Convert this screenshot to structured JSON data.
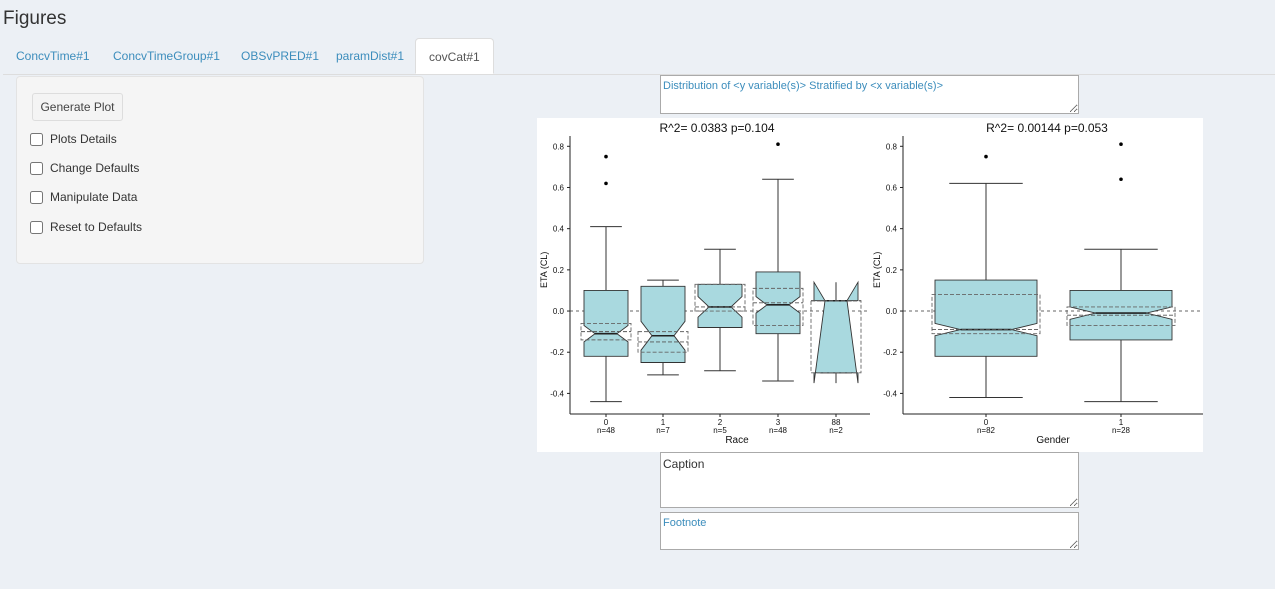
{
  "page": {
    "title": "Figures"
  },
  "tabs": [
    {
      "label": "ConcvTime#1",
      "active": false
    },
    {
      "label": "ConcvTimeGroup#1",
      "active": false
    },
    {
      "label": "OBSvPRED#1",
      "active": false
    },
    {
      "label": "paramDist#1",
      "active": false
    },
    {
      "label": "covCat#1",
      "active": true
    }
  ],
  "panel": {
    "generate_label": "Generate Plot",
    "checkboxes": [
      {
        "label": "Plots Details",
        "checked": false
      },
      {
        "label": "Change Defaults",
        "checked": false
      },
      {
        "label": "Manipulate Data",
        "checked": false
      },
      {
        "label": "Reset to Defaults",
        "checked": false
      }
    ]
  },
  "title_box": {
    "value": "Distribution of <y variable(s)> Stratified by <x variable(s)>"
  },
  "caption_box": {
    "value": "Caption"
  },
  "footnote_box": {
    "value": "Footnote"
  },
  "colors": {
    "box_fill": "#a9d9df",
    "accent": "#3c8dbc"
  },
  "chart_data": [
    {
      "type": "box",
      "title": "R^2= 0.0383  p=0.104",
      "xlabel": "Race",
      "ylabel": "ETA (CL)",
      "ylim": [
        -0.5,
        0.85
      ],
      "yticks": [
        -0.4,
        -0.2,
        0.0,
        0.2,
        0.4,
        0.6,
        0.8
      ],
      "categories": [
        "0",
        "1",
        "2",
        "3",
        "88"
      ],
      "counts": [
        "n=48",
        "n=7",
        "n=5",
        "n=48",
        "n=2"
      ],
      "boxes": [
        {
          "whisker_low": -0.44,
          "q1": -0.22,
          "median": -0.11,
          "q3": 0.1,
          "whisker_high": 0.41,
          "notch_low": -0.15,
          "notch_high": -0.07,
          "outliers": [
            0.62,
            0.75
          ],
          "mean": -0.1,
          "mean_low": -0.14,
          "mean_high": -0.06
        },
        {
          "whisker_low": -0.31,
          "q1": -0.25,
          "median": -0.12,
          "q3": 0.12,
          "whisker_high": 0.15,
          "notch_low": -0.19,
          "notch_high": -0.05,
          "outliers": [],
          "mean": -0.15,
          "mean_low": -0.2,
          "mean_high": -0.1
        },
        {
          "whisker_low": -0.29,
          "q1": -0.08,
          "median": 0.02,
          "q3": 0.13,
          "whisker_high": 0.3,
          "notch_low": -0.03,
          "notch_high": 0.07,
          "outliers": [],
          "mean": 0.02,
          "mean_low": 0.0,
          "mean_high": 0.13
        },
        {
          "whisker_low": -0.34,
          "q1": -0.11,
          "median": 0.03,
          "q3": 0.19,
          "whisker_high": 0.64,
          "notch_low": -0.01,
          "notch_high": 0.07,
          "outliers": [
            0.81
          ],
          "mean": 0.04,
          "mean_low": -0.07,
          "mean_high": 0.11
        },
        {
          "whisker_low": -0.3,
          "q1": -0.3,
          "median": 0.05,
          "q3": 0.05,
          "whisker_high": 0.05,
          "notch_low": -0.35,
          "notch_high": 0.14,
          "outliers": [],
          "mean": 0.05,
          "mean_low": -0.3,
          "mean_high": 0.05
        }
      ]
    },
    {
      "type": "box",
      "title": "R^2= 0.00144  p=0.053",
      "xlabel": "Gender",
      "ylabel": "ETA (CL)",
      "ylim": [
        -0.5,
        0.85
      ],
      "yticks": [
        -0.4,
        -0.2,
        0.0,
        0.2,
        0.4,
        0.6,
        0.8
      ],
      "categories": [
        "0",
        "1"
      ],
      "counts": [
        "n=82",
        "n=28"
      ],
      "boxes": [
        {
          "whisker_low": -0.42,
          "q1": -0.22,
          "median": -0.09,
          "q3": 0.15,
          "whisker_high": 0.62,
          "notch_low": -0.12,
          "notch_high": -0.06,
          "outliers": [
            0.75
          ],
          "mean": -0.09,
          "mean_low": -0.11,
          "mean_high": 0.08
        },
        {
          "whisker_low": -0.44,
          "q1": -0.14,
          "median": -0.01,
          "q3": 0.1,
          "whisker_high": 0.3,
          "notch_low": -0.04,
          "notch_high": 0.02,
          "outliers": [
            0.64,
            0.81
          ],
          "mean": -0.02,
          "mean_low": -0.07,
          "mean_high": 0.02
        }
      ]
    }
  ]
}
